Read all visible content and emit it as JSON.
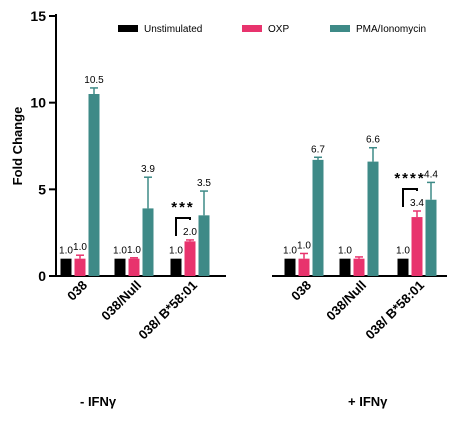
{
  "chart_data": {
    "type": "bar",
    "ylabel": "Fold  Change",
    "ylim": [
      0,
      15
    ],
    "yticks": [
      0,
      5,
      10,
      15
    ],
    "legend_position": "top",
    "categories": [
      "038",
      "038/Null",
      "038/ B*58:01",
      "038",
      "038/Null",
      "038/ B*58:01"
    ],
    "groups": [
      {
        "label": "- IFNγ",
        "category_indices": [
          0,
          1,
          2
        ]
      },
      {
        "label": "+ IFNγ",
        "category_indices": [
          3,
          4,
          5
        ]
      }
    ],
    "series": [
      {
        "name": "Unstimulated",
        "color": "#000000",
        "values": [
          1.0,
          1.0,
          1.0,
          1.0,
          1.0,
          1.0
        ],
        "errors": [
          0.0,
          0.0,
          0.0,
          0.0,
          0.0,
          0.0
        ],
        "labels": [
          "1.0",
          "1.0",
          "1.0",
          "1.0",
          "1.0",
          "1.0"
        ]
      },
      {
        "name": "OXP",
        "color": "#e8336d",
        "values": [
          1.0,
          1.0,
          2.0,
          1.0,
          1.0,
          3.4
        ],
        "errors": [
          0.2,
          0.05,
          0.08,
          0.3,
          0.1,
          0.35
        ],
        "labels": [
          "1.0",
          "1.0",
          "2.0",
          "1.0",
          "",
          "3.4"
        ]
      },
      {
        "name": "PMA/Ionomycin",
        "color": "#3e8a87",
        "values": [
          10.5,
          3.9,
          3.5,
          6.7,
          6.6,
          4.4
        ],
        "errors": [
          0.35,
          1.8,
          1.4,
          0.15,
          0.8,
          1.0
        ],
        "labels": [
          "10.5",
          "3.9",
          "3.5",
          "6.7",
          "6.6",
          "4.4"
        ]
      }
    ],
    "annotations": [
      {
        "text": "***",
        "category_index": 2,
        "from_series": 0,
        "to_series": 1
      },
      {
        "text": "****",
        "category_index": 5,
        "from_series": 0,
        "to_series": 1
      }
    ]
  }
}
